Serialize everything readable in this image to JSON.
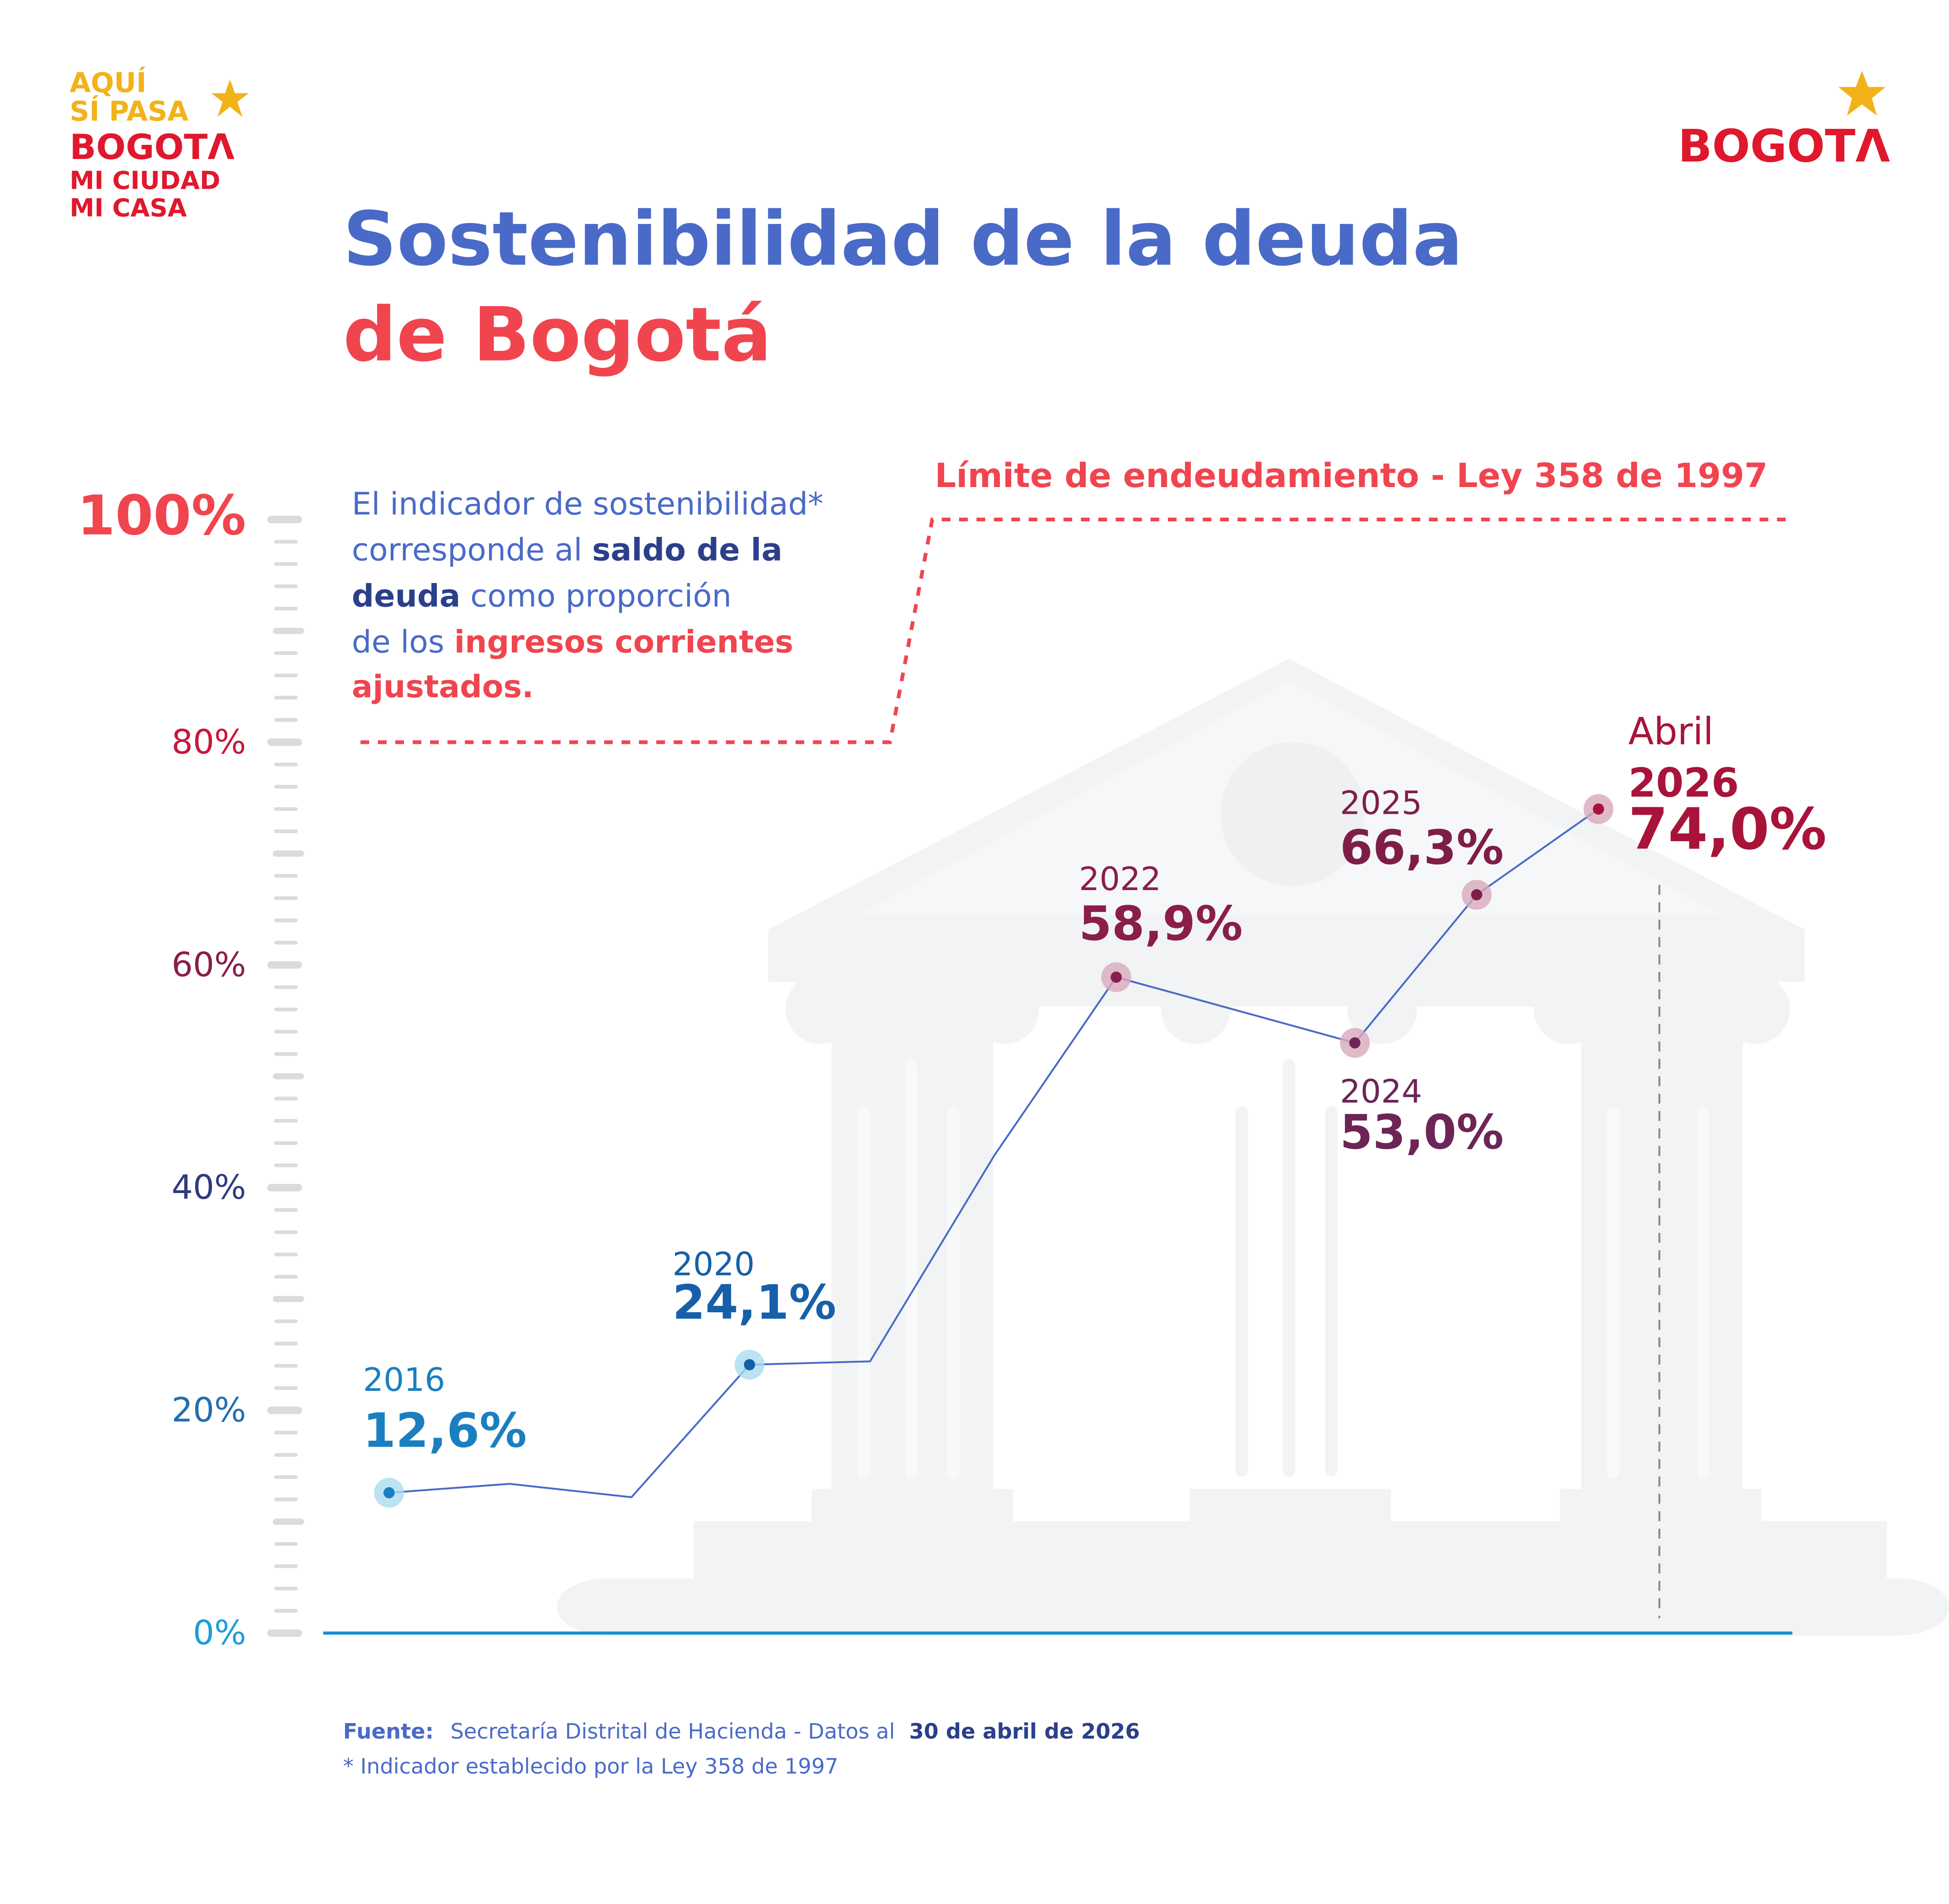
{
  "logos": {
    "left": [
      "AQUÍ",
      "SÍ PASA",
      "BOGOTΛ",
      "MI CIUDAD",
      "MI CASA"
    ],
    "right": "BOGOTΛ"
  },
  "chart_data": {
    "type": "line",
    "title": [
      "Sostenibilidad de la deuda",
      "de Bogotá"
    ],
    "note": [
      "El indicador de sostenibilidad*",
      "corresponde al ",
      "saldo de la",
      "deuda",
      " como proporción",
      "de los ",
      "ingresos  corrientes",
      "ajustados."
    ],
    "limit_label": "Límite de endeudamiento - Ley 358 de 1997",
    "limit_values": [
      80,
      100
    ],
    "categories": [
      "2016",
      null,
      null,
      "2020",
      null,
      null,
      "2022",
      "2024",
      "2025",
      "2026"
    ],
    "category_note": "Abril",
    "values": [
      12.6,
      13.4,
      12.2,
      24.1,
      24.4,
      42.9,
      58.9,
      53.0,
      66.3,
      74.0
    ],
    "value_labels": [
      "12,6%",
      null,
      null,
      "24,1%",
      null,
      null,
      "58,9%",
      "53,0%",
      "66,3%",
      "74,0%"
    ],
    "label_colors": [
      "#1a7fc0",
      null,
      null,
      "#1560a8",
      null,
      null,
      "#8a1e4a",
      "#6e2456",
      "#7e1e48",
      "#a8133a"
    ],
    "color": "#4a6ac8",
    "ylim": [
      0,
      100
    ],
    "yticks": [
      {
        "value": 0,
        "label": "0%"
      },
      {
        "value": 20,
        "label": "20%"
      },
      {
        "value": 40,
        "label": "40%"
      },
      {
        "value": 60,
        "label": "60%"
      },
      {
        "value": 80,
        "label": "80%"
      },
      {
        "value": 100,
        "label": "100%"
      }
    ],
    "yminorticks": [
      2,
      4,
      6,
      8,
      10,
      12,
      14,
      16,
      18,
      22,
      24,
      26,
      28,
      30,
      32,
      34,
      36,
      38,
      42,
      44,
      46,
      48,
      50,
      52,
      54,
      56,
      58,
      62,
      64,
      66,
      68,
      70,
      72,
      74,
      76,
      78,
      82,
      84,
      86,
      88,
      90,
      92,
      94,
      96,
      98
    ]
  },
  "footer": {
    "source_label": "Fuente:",
    "source": "Secretaría Distrital de Hacienda - Datos al",
    "source_date": "30 de abril de 2026",
    "footnote": "* Indicador establecido por la Ley 358 de 1997"
  }
}
